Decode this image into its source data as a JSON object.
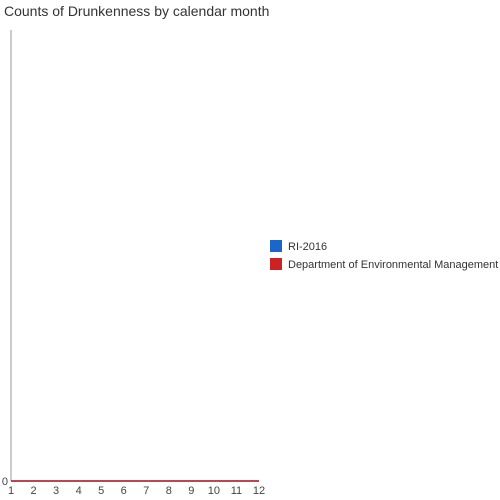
{
  "chart_data": {
    "type": "line",
    "title": "Counts of Drunkenness by calendar month",
    "xlabel": "",
    "ylabel": "",
    "x": [
      1,
      2,
      3,
      4,
      5,
      6,
      7,
      8,
      9,
      10,
      11,
      12
    ],
    "xlim": [
      1,
      12
    ],
    "ylim": [
      0,
      1
    ],
    "y_ticks": [
      "0"
    ],
    "grid": false,
    "legend_position": "right",
    "series": [
      {
        "name": "RI-2016",
        "color": "#1a66cc",
        "values": [
          0,
          0,
          0,
          0,
          0,
          0,
          0,
          0,
          0,
          0,
          0,
          0
        ]
      },
      {
        "name": "Department of Environmental Management",
        "color": "#cc2222",
        "values": [
          0,
          0,
          0,
          0,
          0,
          0,
          0,
          0,
          0,
          0,
          0,
          0
        ]
      }
    ]
  }
}
